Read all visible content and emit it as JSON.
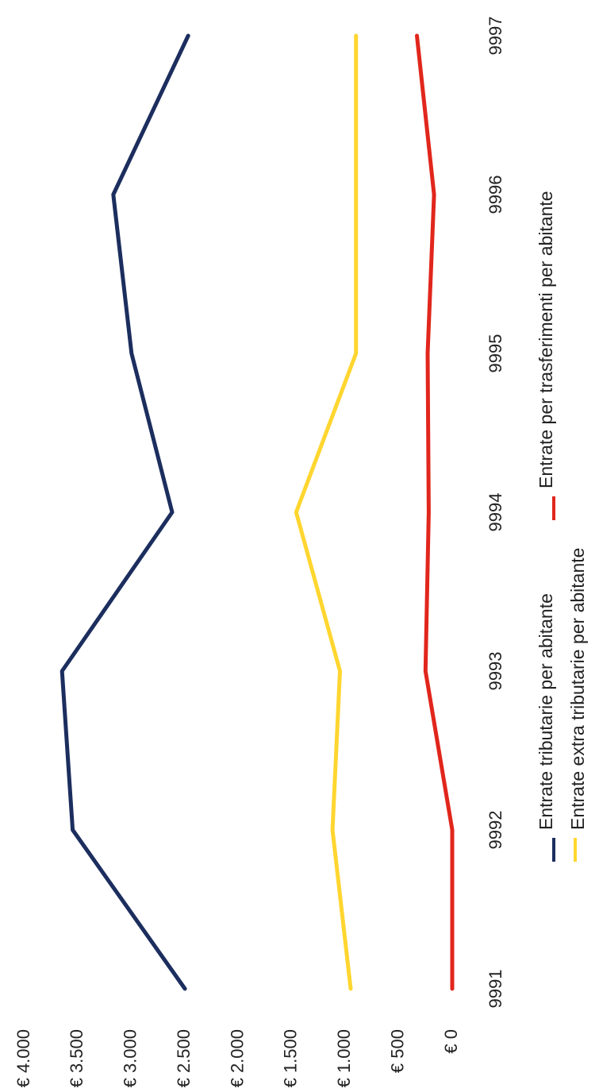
{
  "chart_data": {
    "type": "line",
    "orientation": "rotated-90-degrees",
    "x": [
      "9991",
      "9992",
      "9993",
      "9994",
      "9995",
      "9996",
      "9997"
    ],
    "y_tick_labels": [
      "€ 0",
      "€ 500",
      "€ 1.000",
      "€ 1.500",
      "€ 2.000",
      "€ 2.500",
      "€ 3.000",
      "€ 3.500",
      "€ 4.000"
    ],
    "y_ticks": [
      0,
      500,
      1000,
      1500,
      2000,
      2500,
      3000,
      3500,
      4000
    ],
    "ylim": [
      0,
      4000
    ],
    "grid": false,
    "legend_position": "bottom",
    "series": [
      {
        "name": "Entrate tributarie per abitante",
        "color": "#1c2e5e",
        "values": [
          2500,
          3550,
          3650,
          2620,
          3000,
          3170,
          2470
        ]
      },
      {
        "name": "Entrate extra tributarie per abitante",
        "color": "#ffd630",
        "values": [
          950,
          1120,
          1050,
          1460,
          900,
          900,
          900
        ]
      },
      {
        "name": "Entrate per trasferimenti per abitante",
        "color": "#e1261c",
        "values": [
          0,
          0,
          250,
          220,
          230,
          170,
          330
        ]
      }
    ]
  }
}
